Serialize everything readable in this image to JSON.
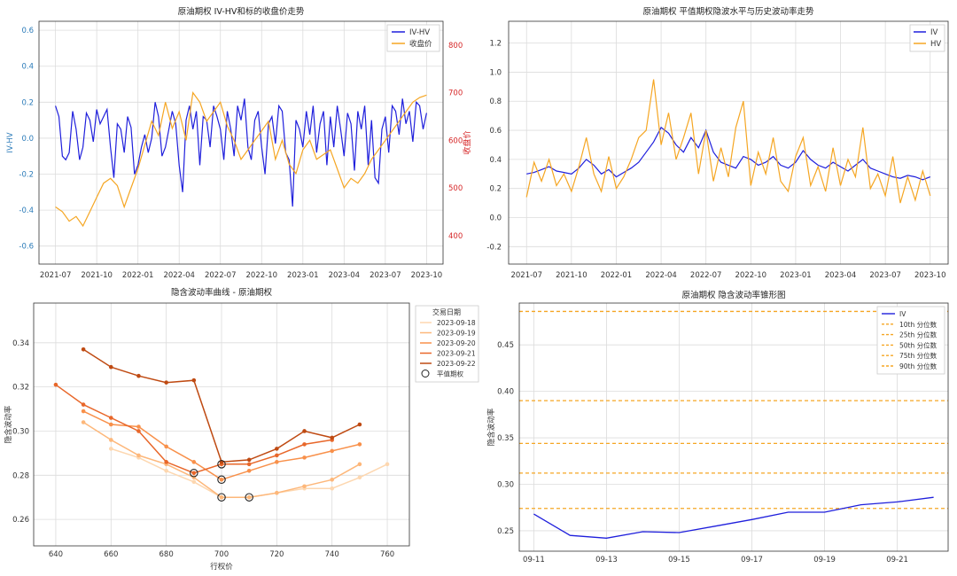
{
  "chart_data": [
    {
      "type": "line",
      "title": "原油期权 IV-HV和标的收盘价走势",
      "xlabel": "",
      "ylabel": "IV-HV",
      "ylabel_right": "收盘价",
      "ylim": [
        -0.7,
        0.65
      ],
      "ylim_right": [
        340,
        850
      ],
      "yticks": [
        "-0.6",
        "-0.4",
        "-0.2",
        "0.0",
        "0.2",
        "0.4",
        "0.6"
      ],
      "yticks_right": [
        "400",
        "500",
        "600",
        "700",
        "800"
      ],
      "xticks": [
        "2021-07",
        "2021-10",
        "2022-01",
        "2022-04",
        "2022-07",
        "2022-10",
        "2023-01",
        "2023-04",
        "2023-07",
        "2023-10"
      ],
      "legend": [
        "IV-HV",
        "收盘价"
      ],
      "series": [
        {
          "name": "IV-HV",
          "color": "#1f1fdc",
          "axis": "left",
          "t": [
            0,
            0.25,
            0.5,
            0.75,
            1,
            1.25,
            1.5,
            1.75,
            2,
            2.25,
            2.5,
            2.75,
            3,
            3.25,
            3.5,
            3.75,
            4,
            4.25,
            4.5,
            4.75,
            5,
            5.25,
            5.5,
            5.75,
            6,
            6.25,
            6.5,
            6.75,
            7,
            7.25,
            7.5,
            7.75,
            8,
            8.25,
            8.5,
            8.75,
            9,
            9.25,
            9.5,
            9.75,
            10,
            10.25,
            10.5,
            10.75,
            11,
            11.25,
            11.5,
            11.75,
            12,
            12.25,
            12.5,
            12.75,
            13,
            13.25,
            13.5,
            13.75,
            14,
            14.25,
            14.5,
            14.75,
            15,
            15.25,
            15.5,
            15.75,
            16,
            16.25,
            16.5,
            16.75,
            17,
            17.25,
            17.5,
            17.75,
            18,
            18.25,
            18.5,
            18.75,
            19,
            19.25,
            19.5,
            19.75,
            20,
            20.25,
            20.5,
            20.75,
            21,
            21.25,
            21.5,
            21.75,
            22,
            22.25,
            22.5,
            22.75,
            23,
            23.25,
            23.5,
            23.75,
            24,
            24.25,
            24.5,
            24.75,
            25,
            25.25,
            25.5,
            25.75,
            26,
            26.25,
            26.5,
            26.75,
            27
          ],
          "values": [
            0.18,
            0.12,
            -0.1,
            -0.12,
            -0.08,
            0.15,
            0.05,
            -0.12,
            -0.05,
            0.14,
            0.1,
            -0.02,
            0.16,
            0.08,
            0.12,
            0.16,
            -0.05,
            -0.22,
            0.08,
            0.05,
            -0.08,
            0.12,
            0.06,
            -0.2,
            -0.15,
            -0.05,
            0.02,
            -0.08,
            0.0,
            0.2,
            0.12,
            -0.1,
            -0.05,
            0.05,
            0.15,
            0.08,
            -0.15,
            -0.3,
            0.1,
            0.18,
            0.05,
            0.15,
            -0.15,
            0.12,
            0.1,
            -0.05,
            0.18,
            0.12,
            0.05,
            -0.12,
            0.15,
            0.05,
            -0.1,
            0.18,
            0.1,
            0.22,
            -0.05,
            -0.12,
            0.1,
            0.15,
            -0.05,
            -0.2,
            0.08,
            0.12,
            -0.03,
            0.18,
            0.15,
            -0.08,
            -0.12,
            -0.38,
            0.1,
            0.05,
            -0.05,
            0.15,
            0.02,
            0.18,
            -0.08,
            0.08,
            0.15,
            -0.15,
            0.12,
            -0.05,
            0.18,
            0.05,
            -0.1,
            0.14,
            0.08,
            -0.18,
            0.15,
            0.05,
            0.18,
            -0.15,
            0.1,
            -0.22,
            -0.25,
            0.05,
            0.12,
            -0.08,
            0.18,
            0.15,
            0.02,
            0.22,
            0.08,
            0.15,
            -0.02,
            0.2,
            0.18,
            0.05,
            0.14
          ]
        },
        {
          "name": "收盘价",
          "color": "#f5a623",
          "axis": "right",
          "t": [
            0,
            0.5,
            1,
            1.5,
            2,
            2.5,
            3,
            3.5,
            4,
            4.5,
            5,
            5.5,
            6,
            6.5,
            7,
            7.5,
            8,
            8.5,
            9,
            9.5,
            10,
            10.5,
            11,
            11.5,
            12,
            12.5,
            13,
            13.5,
            14,
            14.5,
            15,
            15.5,
            16,
            16.5,
            17,
            17.5,
            18,
            18.5,
            19,
            19.5,
            20,
            20.5,
            21,
            21.5,
            22,
            22.5,
            23,
            23.5,
            24,
            24.5,
            25,
            25.5,
            26,
            26.5,
            27
          ],
          "values": [
            460,
            450,
            430,
            440,
            420,
            450,
            480,
            510,
            520,
            505,
            460,
            500,
            540,
            590,
            640,
            610,
            680,
            625,
            660,
            600,
            700,
            680,
            640,
            660,
            680,
            630,
            600,
            560,
            580,
            600,
            620,
            640,
            560,
            600,
            550,
            530,
            580,
            600,
            560,
            570,
            580,
            540,
            500,
            520,
            510,
            530,
            560,
            580,
            600,
            620,
            640,
            660,
            680,
            690,
            695
          ]
        }
      ]
    },
    {
      "type": "line",
      "title": "原油期权 平值期权隐波水平与历史波动率走势",
      "xlabel": "",
      "ylabel": "",
      "ylim": [
        -0.32,
        1.35
      ],
      "yticks": [
        "-0.2",
        "0.0",
        "0.2",
        "0.4",
        "0.6",
        "0.8",
        "1.0",
        "1.2"
      ],
      "xticks": [
        "2021-07",
        "2021-10",
        "2022-01",
        "2022-04",
        "2022-07",
        "2022-10",
        "2023-01",
        "2023-04",
        "2023-07",
        "2023-10"
      ],
      "legend": [
        "IV",
        "HV"
      ],
      "series": [
        {
          "name": "IV",
          "color": "#1f1fdc",
          "t": [
            0,
            0.5,
            1,
            1.5,
            2,
            2.5,
            3,
            3.5,
            4,
            4.5,
            5,
            5.5,
            6,
            6.5,
            7,
            7.5,
            8,
            8.5,
            9,
            9.5,
            10,
            10.5,
            11,
            11.5,
            12,
            12.5,
            13,
            13.5,
            14,
            14.5,
            15,
            15.5,
            16,
            16.5,
            17,
            17.5,
            18,
            18.5,
            19,
            19.5,
            20,
            20.5,
            21,
            21.5,
            22,
            22.5,
            23,
            23.5,
            24,
            24.5,
            25,
            25.5,
            26,
            26.5,
            27
          ],
          "values": [
            0.3,
            0.31,
            0.33,
            0.35,
            0.32,
            0.31,
            0.3,
            0.34,
            0.4,
            0.36,
            0.3,
            0.33,
            0.28,
            0.31,
            0.34,
            0.38,
            0.45,
            0.52,
            0.62,
            0.58,
            0.5,
            0.45,
            0.55,
            0.48,
            0.6,
            0.45,
            0.38,
            0.36,
            0.34,
            0.42,
            0.4,
            0.36,
            0.38,
            0.42,
            0.36,
            0.34,
            0.38,
            0.46,
            0.4,
            0.36,
            0.34,
            0.38,
            0.35,
            0.32,
            0.36,
            0.4,
            0.34,
            0.32,
            0.3,
            0.28,
            0.27,
            0.29,
            0.28,
            0.26,
            0.28
          ]
        },
        {
          "name": "HV",
          "color": "#f5a623",
          "t": [
            0,
            0.5,
            1,
            1.5,
            2,
            2.5,
            3,
            3.5,
            4,
            4.5,
            5,
            5.5,
            6,
            6.5,
            7,
            7.5,
            8,
            8.5,
            9,
            9.5,
            10,
            10.5,
            11,
            11.5,
            12,
            12.5,
            13,
            13.5,
            14,
            14.5,
            15,
            15.5,
            16,
            16.5,
            17,
            17.5,
            18,
            18.5,
            19,
            19.5,
            20,
            20.5,
            21,
            21.5,
            22,
            22.5,
            23,
            23.5,
            24,
            24.5,
            25,
            25.5,
            26,
            26.5,
            27
          ],
          "values": [
            0.14,
            0.38,
            0.25,
            0.4,
            0.22,
            0.3,
            0.18,
            0.35,
            0.55,
            0.3,
            0.18,
            0.42,
            0.2,
            0.28,
            0.4,
            0.55,
            0.6,
            0.95,
            0.5,
            0.72,
            0.4,
            0.55,
            0.72,
            0.3,
            0.6,
            0.25,
            0.48,
            0.28,
            0.62,
            0.8,
            0.22,
            0.45,
            0.3,
            0.55,
            0.25,
            0.18,
            0.42,
            0.55,
            0.22,
            0.35,
            0.18,
            0.48,
            0.22,
            0.4,
            0.28,
            0.62,
            0.2,
            0.3,
            0.15,
            0.42,
            0.1,
            0.28,
            0.12,
            0.32,
            0.15
          ]
        }
      ]
    },
    {
      "type": "line",
      "title": "隐含波动率曲线 - 原油期权",
      "xlabel": "行权价",
      "ylabel": "隐含波动率",
      "xlim": [
        632,
        768
      ],
      "ylim": [
        0.248,
        0.358
      ],
      "xticks": [
        "640",
        "660",
        "680",
        "700",
        "720",
        "740",
        "760"
      ],
      "yticks": [
        "0.26",
        "0.28",
        "0.30",
        "0.32",
        "0.34"
      ],
      "legend_title": "交易日期",
      "legend": [
        "2023-09-18",
        "2023-09-19",
        "2023-09-20",
        "2023-09-21",
        "2023-09-22",
        "平值期权"
      ],
      "series": [
        {
          "name": "2023-09-18",
          "color": "#fdd7b0",
          "x": [
            660,
            670,
            680,
            690,
            700,
            710,
            720,
            730,
            740,
            750,
            760
          ],
          "values": [
            0.292,
            0.288,
            0.282,
            0.277,
            0.27,
            0.27,
            0.272,
            0.274,
            0.274,
            0.279,
            0.285
          ]
        },
        {
          "name": "2023-09-19",
          "color": "#fdb77a",
          "x": [
            650,
            660,
            670,
            680,
            690,
            700,
            710,
            720,
            730,
            740,
            750
          ],
          "values": [
            0.304,
            0.296,
            0.289,
            0.285,
            0.279,
            0.27,
            0.27,
            0.272,
            0.275,
            0.278,
            0.285
          ]
        },
        {
          "name": "2023-09-20",
          "color": "#f8904a",
          "x": [
            650,
            660,
            670,
            680,
            690,
            700,
            710,
            720,
            730,
            740,
            750
          ],
          "values": [
            0.309,
            0.303,
            0.302,
            0.293,
            0.286,
            0.278,
            0.282,
            0.286,
            0.288,
            0.291,
            0.294
          ]
        },
        {
          "name": "2023-09-21",
          "color": "#e8672a",
          "x": [
            640,
            650,
            660,
            670,
            680,
            690,
            700,
            710,
            720,
            730,
            740
          ],
          "values": [
            0.321,
            0.312,
            0.306,
            0.3,
            0.286,
            0.281,
            0.285,
            0.285,
            0.289,
            0.294,
            0.296
          ]
        },
        {
          "name": "2023-09-22",
          "color": "#bf4a12",
          "x": [
            650,
            660,
            670,
            680,
            690,
            700,
            710,
            720,
            730,
            740,
            750
          ],
          "values": [
            0.337,
            0.329,
            0.325,
            0.322,
            0.323,
            0.286,
            0.287,
            0.292,
            0.3,
            0.297,
            0.303
          ]
        }
      ],
      "atm_points": [
        {
          "x": 690,
          "y": 0.281
        },
        {
          "x": 700,
          "y": 0.285
        },
        {
          "x": 700,
          "y": 0.278
        },
        {
          "x": 700,
          "y": 0.27
        },
        {
          "x": 710,
          "y": 0.27
        }
      ]
    },
    {
      "type": "line",
      "title": "原油期权 隐含波动率锥形图",
      "xlabel": "",
      "ylabel": "隐含波动率",
      "xlim": [
        -0.4,
        11.4
      ],
      "ylim": [
        0.228,
        0.495
      ],
      "xticks": [
        "09-11",
        "09-13",
        "09-15",
        "09-17",
        "09-19",
        "09-21"
      ],
      "xtick_pos": [
        0,
        2,
        4,
        6,
        8,
        10
      ],
      "yticks": [
        "0.25",
        "0.30",
        "0.35",
        "0.40",
        "0.45"
      ],
      "legend": [
        "IV",
        "10th 分位数",
        "25th 分位数",
        "50th 分位数",
        "75th 分位数",
        "90th 分位数"
      ],
      "series": [
        {
          "name": "IV",
          "color": "#1f1fdc",
          "x": [
            0,
            1,
            2,
            3,
            4,
            5,
            6,
            7,
            8,
            9,
            10,
            11
          ],
          "values": [
            0.268,
            0.245,
            0.242,
            0.249,
            0.248,
            0.255,
            0.262,
            0.27,
            0.27,
            0.278,
            0.281,
            0.286
          ]
        }
      ],
      "percentiles": [
        {
          "name": "10th 分位数",
          "value": 0.274
        },
        {
          "name": "25th 分位数",
          "value": 0.312
        },
        {
          "name": "50th 分位数",
          "value": 0.344
        },
        {
          "name": "75th 分位数",
          "value": 0.39
        },
        {
          "name": "90th 分位数",
          "value": 0.486
        }
      ],
      "percentile_color": "#f5a623"
    }
  ]
}
